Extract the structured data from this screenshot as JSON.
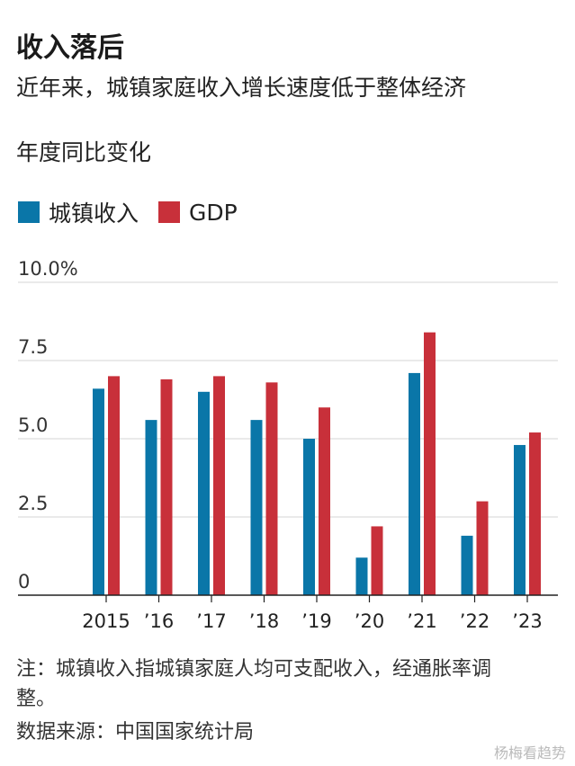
{
  "header": {
    "title": "收入落后",
    "subtitle": "近年来，城镇家庭收入增长速度低于整体经济",
    "unit_label": "年度同比变化"
  },
  "legend": [
    {
      "label": "城镇收入",
      "color": "#0a76a8"
    },
    {
      "label": "GDP",
      "color": "#c8303a"
    }
  ],
  "chart_data": {
    "type": "bar",
    "categories": [
      "2015",
      "’16",
      "’17",
      "’18",
      "’19",
      "’20",
      "’21",
      "’22",
      "’23"
    ],
    "series": [
      {
        "name": "城镇收入",
        "color": "#0a76a8",
        "values": [
          6.6,
          5.6,
          6.5,
          5.6,
          5.0,
          1.2,
          7.1,
          1.9,
          4.8
        ]
      },
      {
        "name": "GDP",
        "color": "#c8303a",
        "values": [
          7.0,
          6.9,
          7.0,
          6.8,
          6.0,
          2.2,
          8.4,
          3.0,
          5.2
        ]
      }
    ],
    "ylim": [
      0,
      10
    ],
    "yticks": [
      0,
      2.5,
      5.0,
      7.5,
      10.0
    ],
    "ytick_labels": [
      "0",
      "2.5",
      "5.0",
      "7.5",
      "10.0%"
    ],
    "grid": true
  },
  "footer": {
    "note": "注：城镇收入指城镇家庭人均可支配收入，经通胀率调整。",
    "source": "数据来源：中国国家统计局",
    "watermark": "杨梅看趋势"
  }
}
